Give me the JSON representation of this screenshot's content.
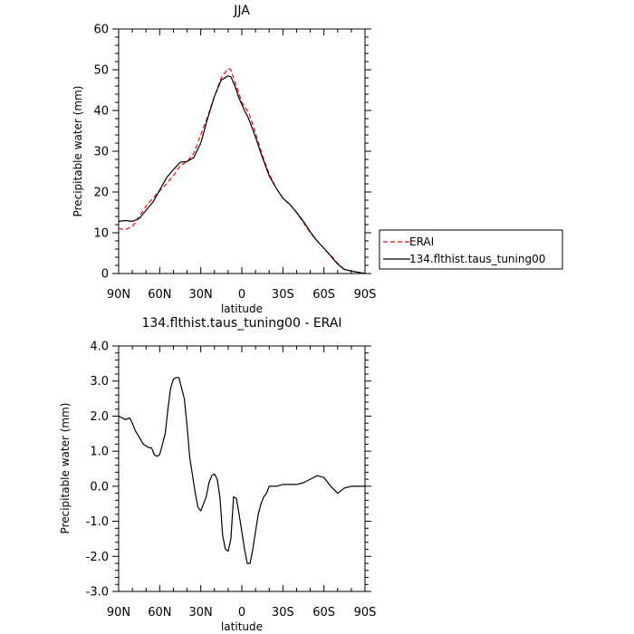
{
  "chart_data": [
    {
      "type": "line",
      "title": "JJA",
      "xlabel": "latitude",
      "ylabel": "Precipitable water (mm)",
      "x_ticks": [
        "90N",
        "60N",
        "30N",
        "0",
        "30S",
        "60S",
        "90S"
      ],
      "y_ticks": [
        "0",
        "10",
        "20",
        "30",
        "40",
        "50",
        "60"
      ],
      "xlim": [
        90,
        -90
      ],
      "ylim": [
        0,
        60
      ],
      "grid": false,
      "legend_position": "right",
      "series": [
        {
          "name": "ERAI",
          "color": "#ff0000",
          "style": "dashed",
          "x": [
            90,
            85,
            80,
            75,
            70,
            65,
            60,
            55,
            50,
            45,
            40,
            35,
            30,
            25,
            20,
            15,
            10,
            8,
            5,
            2,
            0,
            -2,
            -5,
            -10,
            -15,
            -20,
            -25,
            -30,
            -35,
            -40,
            -45,
            -50,
            -55,
            -60,
            -65,
            -70,
            -75,
            -80,
            -85,
            -90
          ],
          "y": [
            11,
            10.8,
            11.5,
            14,
            16.5,
            18.5,
            20.3,
            22,
            24,
            26.5,
            27.5,
            29.5,
            34,
            38.5,
            43.5,
            48,
            50.3,
            50,
            47,
            44,
            42,
            41,
            39.5,
            34.5,
            29,
            24.5,
            21,
            18.5,
            17,
            15,
            12.5,
            10,
            8,
            6.2,
            4.5,
            2.5,
            1,
            0.6,
            0.3,
            0
          ]
        },
        {
          "name": "134.flthist.taus_tuning00",
          "color": "#000000",
          "style": "solid",
          "x": [
            90,
            85,
            80,
            75,
            70,
            65,
            60,
            55,
            50,
            45,
            40,
            35,
            30,
            25,
            20,
            15,
            10,
            8,
            5,
            2,
            0,
            -2,
            -5,
            -10,
            -15,
            -20,
            -25,
            -30,
            -35,
            -40,
            -45,
            -50,
            -55,
            -60,
            -65,
            -70,
            -75,
            -80,
            -85,
            -90
          ],
          "y": [
            12.8,
            13,
            12.8,
            13.5,
            15.5,
            17.5,
            20.5,
            23.5,
            25.5,
            27.3,
            27.5,
            28.5,
            32,
            38,
            43.5,
            47.5,
            48.5,
            48.3,
            46,
            43,
            41.5,
            40,
            38,
            33.5,
            28.5,
            24,
            21,
            18.5,
            17,
            15,
            12.8,
            10.2,
            8,
            6.2,
            4.3,
            2.3,
            1,
            0.6,
            0.3,
            0
          ]
        }
      ]
    },
    {
      "type": "line",
      "title": "134.flthist.taus_tuning00 - ERAI",
      "xlabel": "latitude",
      "ylabel": "Precipitable water (mm)",
      "x_ticks": [
        "90N",
        "60N",
        "30N",
        "0",
        "30S",
        "60S",
        "90S"
      ],
      "y_ticks": [
        "4.0",
        "3.0",
        "2.0",
        "1.0",
        "0.0",
        "-1.0",
        "-2.0",
        "-3.0"
      ],
      "xlim": [
        90,
        -90
      ],
      "ylim": [
        -3,
        4
      ],
      "grid": false,
      "series": [
        {
          "color": "#000000",
          "style": "solid",
          "x": [
            90,
            85,
            82,
            80,
            78,
            75,
            72,
            70,
            68,
            66,
            64,
            62,
            60,
            58,
            56,
            54,
            52,
            50,
            48,
            46,
            44,
            42,
            40,
            38,
            36,
            34,
            32,
            30,
            28,
            26,
            24,
            22,
            20,
            18,
            16,
            14,
            12,
            10,
            8,
            6,
            4,
            2,
            0,
            -2,
            -4,
            -6,
            -8,
            -10,
            -12,
            -14,
            -16,
            -18,
            -20,
            -22,
            -25,
            -30,
            -35,
            -40,
            -45,
            -50,
            -55,
            -60,
            -65,
            -70,
            -75,
            -80,
            -85,
            -90
          ],
          "y": [
            2.0,
            1.9,
            1.95,
            1.8,
            1.6,
            1.4,
            1.2,
            1.15,
            1.1,
            1.1,
            0.9,
            0.85,
            0.9,
            1.2,
            1.5,
            2.2,
            2.8,
            3.05,
            3.1,
            3.1,
            2.8,
            2.5,
            1.7,
            0.8,
            0.3,
            -0.2,
            -0.6,
            -0.7,
            -0.5,
            -0.3,
            0.1,
            0.3,
            0.35,
            0.2,
            -0.3,
            -1.4,
            -1.8,
            -1.85,
            -1.5,
            -0.3,
            -0.35,
            -0.8,
            -1.3,
            -1.8,
            -2.2,
            -2.2,
            -1.8,
            -1.3,
            -0.8,
            -0.5,
            -0.3,
            -0.2,
            0.0,
            0.0,
            0.0,
            0.05,
            0.05,
            0.05,
            0.1,
            0.2,
            0.3,
            0.25,
            0.0,
            -0.2,
            -0.05,
            0.0,
            0.0,
            0.0
          ]
        }
      ]
    }
  ]
}
